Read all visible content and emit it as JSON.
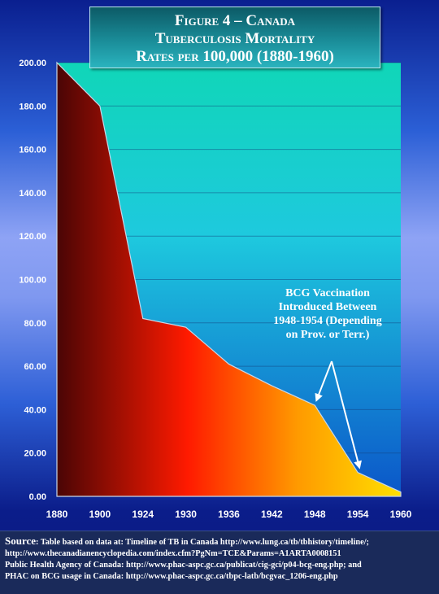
{
  "title": {
    "line1": "Figure 4 – Canada",
    "line2": "Tuberculosis Mortality",
    "line3": "Rates per 100,000 (1880-1960)"
  },
  "annotation": {
    "lines": [
      "BCG Vaccination",
      "Introduced Between",
      "1948-1954 (Depending",
      "on Prov. or Terr.)"
    ]
  },
  "source": {
    "label": "Source",
    "line1": ": Table based on data at: Timeline of TB in Canada http://www.lung.ca/tb/tbhistory/timeline/;",
    "line2": "http://www.thecanadianencyclopedia.com/index.cfm?PgNm=TCE&Params=A1ARTA0008151",
    "line3": "Public Health Agency of Canada:  http://www.phac-aspc.gc.ca/publicat/cig-gci/p04-bcg-eng.php; and",
    "line4": "PHAC on BCG usage in Canada:  http://www.phac-aspc.gc.ca/tbpc-latb/bcgvac_1206-eng.php"
  },
  "colors": {
    "area_start": "#4a0505",
    "area_mid": "#ff1a00",
    "area_end": "#ffe000",
    "plot_top": "#10d6b8",
    "plot_bottom": "#0b56c9"
  },
  "chart_data": {
    "type": "area",
    "x": [
      1880,
      1900,
      1924,
      1930,
      1936,
      1942,
      1948,
      1954,
      1960
    ],
    "x_tick_labels": [
      "1880",
      "1900",
      "1924",
      "1930",
      "1936",
      "1942",
      "1948",
      "1954",
      "1960"
    ],
    "values": [
      200,
      180,
      82,
      78,
      61,
      51,
      42,
      11,
      2
    ],
    "ylim": [
      0,
      200
    ],
    "y_ticks": [
      0,
      20,
      40,
      60,
      80,
      100,
      120,
      140,
      160,
      180,
      200
    ],
    "y_tick_labels": [
      "0.00",
      "20.00",
      "40.00",
      "60.00",
      "80.00",
      "100.00",
      "120.00",
      "140.00",
      "160.00",
      "180.00",
      "200.00"
    ],
    "grid": true,
    "annotation_arrows_to": [
      1948,
      1954
    ]
  }
}
